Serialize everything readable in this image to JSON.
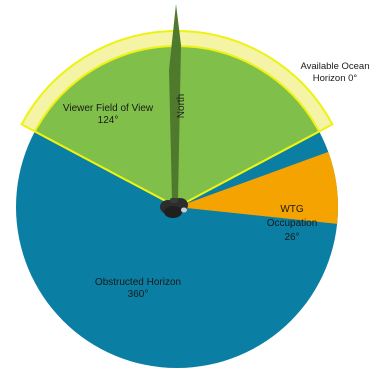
{
  "labels": {
    "viewer_fov": {
      "name": "Viewer Field of View",
      "angle": "124°"
    },
    "wtg": {
      "name_line1": "WTG",
      "name_line2": "Occupation",
      "angle": "26°"
    },
    "obstructed": {
      "name": "Obstructed Horizon",
      "angle": "360°"
    },
    "available": {
      "name_line1": "Available Ocean",
      "name_line2": "Horizon 0°"
    },
    "north": "North"
  },
  "colors": {
    "obstructed": "#0a7ea3",
    "fov": "#7fbf4a",
    "fov_band": "#f4f3a6",
    "fov_outline": "#eef212",
    "wtg": "#f4a300",
    "needle": "#4f7a2e",
    "viewer_icon": "#2d2d2d"
  },
  "icons": {
    "viewer": "binoculars-icon",
    "north": "compass-needle-icon"
  },
  "sectors_deg": {
    "fov": {
      "from": -62,
      "to": 62
    },
    "wtg": {
      "from": 70,
      "to": 96
    }
  }
}
